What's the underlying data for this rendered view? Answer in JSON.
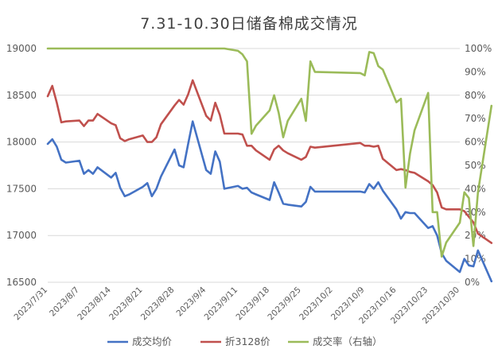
{
  "chart_data": {
    "type": "line",
    "title": "7.31-10.30日储备棉成交情况",
    "xlabel": "",
    "ylabel": "",
    "ylim": [
      16500,
      19000
    ],
    "y_ticks": [
      "16500",
      "17000",
      "17500",
      "18000",
      "18500",
      "19000"
    ],
    "y2lim": [
      0,
      1
    ],
    "y2_ticks": [
      "0%",
      "10%",
      "20%",
      "30%",
      "40%",
      "50%",
      "60%",
      "70%",
      "80%",
      "90%",
      "100%"
    ],
    "x_ticks": [
      "2023/7/31",
      "2023/8/7",
      "2023/8/14",
      "2023/8/21",
      "2023/8/28",
      "2023/9/4",
      "2023/9/11",
      "2023/9/18",
      "2023/9/25",
      "2023/10/2",
      "2023/10/9",
      "2023/10/16",
      "2023/10/23",
      "2023/10/30"
    ],
    "grid": true,
    "legend_position": "bottom",
    "series": [
      {
        "name": "成交均价",
        "axis": "left",
        "color": "#4472c4",
        "points": [
          [
            "2023/7/31",
            17980
          ],
          [
            "2023/8/1",
            18030
          ],
          [
            "2023/8/2",
            17950
          ],
          [
            "2023/8/3",
            17810
          ],
          [
            "2023/8/4",
            17780
          ],
          [
            "2023/8/7",
            17800
          ],
          [
            "2023/8/8",
            17660
          ],
          [
            "2023/8/9",
            17700
          ],
          [
            "2023/8/10",
            17660
          ],
          [
            "2023/8/11",
            17730
          ],
          [
            "2023/8/14",
            17620
          ],
          [
            "2023/8/15",
            17670
          ],
          [
            "2023/8/16",
            17510
          ],
          [
            "2023/8/17",
            17420
          ],
          [
            "2023/8/18",
            17440
          ],
          [
            "2023/8/21",
            17520
          ],
          [
            "2023/8/22",
            17560
          ],
          [
            "2023/8/23",
            17420
          ],
          [
            "2023/8/24",
            17500
          ],
          [
            "2023/8/25",
            17630
          ],
          [
            "2023/8/28",
            17920
          ],
          [
            "2023/8/29",
            17750
          ],
          [
            "2023/8/30",
            17730
          ],
          [
            "2023/8/31",
            17980
          ],
          [
            "2023/9/1",
            18220
          ],
          [
            "2023/9/4",
            17700
          ],
          [
            "2023/9/5",
            17660
          ],
          [
            "2023/9/6",
            17900
          ],
          [
            "2023/9/7",
            17790
          ],
          [
            "2023/9/8",
            17500
          ],
          [
            "2023/9/11",
            17530
          ],
          [
            "2023/9/12",
            17500
          ],
          [
            "2023/9/13",
            17510
          ],
          [
            "2023/9/14",
            17460
          ],
          [
            "2023/9/15",
            17440
          ],
          [
            "2023/9/18",
            17380
          ],
          [
            "2023/9/19",
            17570
          ],
          [
            "2023/9/20",
            17460
          ],
          [
            "2023/9/21",
            17340
          ],
          [
            "2023/9/22",
            17330
          ],
          [
            "2023/9/25",
            17310
          ],
          [
            "2023/9/26",
            17360
          ],
          [
            "2023/9/27",
            17520
          ],
          [
            "2023/9/28",
            17470
          ],
          [
            "2023/10/8",
            17470
          ],
          [
            "2023/10/9",
            17460
          ],
          [
            "2023/10/10",
            17550
          ],
          [
            "2023/10/11",
            17500
          ],
          [
            "2023/10/12",
            17570
          ],
          [
            "2023/10/13",
            17480
          ],
          [
            "2023/10/16",
            17280
          ],
          [
            "2023/10/17",
            17180
          ],
          [
            "2023/10/18",
            17250
          ],
          [
            "2023/10/19",
            17240
          ],
          [
            "2023/10/20",
            17240
          ],
          [
            "2023/10/23",
            17080
          ],
          [
            "2023/10/24",
            17100
          ],
          [
            "2023/10/25",
            17000
          ],
          [
            "2023/10/26",
            16810
          ],
          [
            "2023/10/27",
            16730
          ],
          [
            "2023/10/30",
            16610
          ],
          [
            "2023/10/31",
            16750
          ],
          [
            "2023/11/1",
            16680
          ],
          [
            "2023/11/2",
            16670
          ],
          [
            "2023/11/3",
            16840
          ],
          [
            "2023/11/6",
            16510
          ]
        ]
      },
      {
        "name": "折3128价",
        "axis": "left",
        "color": "#c0504d",
        "points": [
          [
            "2023/7/31",
            18490
          ],
          [
            "2023/8/1",
            18600
          ],
          [
            "2023/8/2",
            18420
          ],
          [
            "2023/8/3",
            18210
          ],
          [
            "2023/8/4",
            18220
          ],
          [
            "2023/8/7",
            18230
          ],
          [
            "2023/8/8",
            18170
          ],
          [
            "2023/8/9",
            18230
          ],
          [
            "2023/8/10",
            18230
          ],
          [
            "2023/8/11",
            18300
          ],
          [
            "2023/8/14",
            18200
          ],
          [
            "2023/8/15",
            18180
          ],
          [
            "2023/8/16",
            18040
          ],
          [
            "2023/8/17",
            18010
          ],
          [
            "2023/8/18",
            18030
          ],
          [
            "2023/8/21",
            18070
          ],
          [
            "2023/8/22",
            18000
          ],
          [
            "2023/8/23",
            18000
          ],
          [
            "2023/8/24",
            18050
          ],
          [
            "2023/8/25",
            18190
          ],
          [
            "2023/8/28",
            18390
          ],
          [
            "2023/8/29",
            18450
          ],
          [
            "2023/8/30",
            18400
          ],
          [
            "2023/8/31",
            18510
          ],
          [
            "2023/9/1",
            18660
          ],
          [
            "2023/9/4",
            18280
          ],
          [
            "2023/9/5",
            18230
          ],
          [
            "2023/9/6",
            18420
          ],
          [
            "2023/9/7",
            18290
          ],
          [
            "2023/9/8",
            18090
          ],
          [
            "2023/9/11",
            18090
          ],
          [
            "2023/9/12",
            18080
          ],
          [
            "2023/9/13",
            17960
          ],
          [
            "2023/9/14",
            17960
          ],
          [
            "2023/9/15",
            17910
          ],
          [
            "2023/9/18",
            17810
          ],
          [
            "2023/9/19",
            17920
          ],
          [
            "2023/9/20",
            17960
          ],
          [
            "2023/9/21",
            17910
          ],
          [
            "2023/9/22",
            17880
          ],
          [
            "2023/9/25",
            17810
          ],
          [
            "2023/9/26",
            17840
          ],
          [
            "2023/9/27",
            17950
          ],
          [
            "2023/9/28",
            17940
          ],
          [
            "2023/10/8",
            17990
          ],
          [
            "2023/10/9",
            17960
          ],
          [
            "2023/10/10",
            17960
          ],
          [
            "2023/10/11",
            17950
          ],
          [
            "2023/10/12",
            17960
          ],
          [
            "2023/10/13",
            17820
          ],
          [
            "2023/10/16",
            17700
          ],
          [
            "2023/10/17",
            17710
          ],
          [
            "2023/10/18",
            17700
          ],
          [
            "2023/10/19",
            17680
          ],
          [
            "2023/10/20",
            17670
          ],
          [
            "2023/10/23",
            17580
          ],
          [
            "2023/10/24",
            17540
          ],
          [
            "2023/10/25",
            17460
          ],
          [
            "2023/10/26",
            17300
          ],
          [
            "2023/10/27",
            17280
          ],
          [
            "2023/10/30",
            17280
          ],
          [
            "2023/10/31",
            17260
          ],
          [
            "2023/11/1",
            17200
          ],
          [
            "2023/11/2",
            17140
          ],
          [
            "2023/11/3",
            17020
          ],
          [
            "2023/11/6",
            16920
          ]
        ]
      },
      {
        "name": "成交率（右轴）",
        "axis": "right",
        "color": "#9bbb59",
        "points": [
          [
            "2023/7/31",
            1.0
          ],
          [
            "2023/8/7",
            1.0
          ],
          [
            "2023/8/14",
            1.0
          ],
          [
            "2023/8/21",
            1.0
          ],
          [
            "2023/8/28",
            1.0
          ],
          [
            "2023/9/4",
            1.0
          ],
          [
            "2023/9/8",
            1.0
          ],
          [
            "2023/9/11",
            0.99
          ],
          [
            "2023/9/12",
            0.975
          ],
          [
            "2023/9/13",
            0.945
          ],
          [
            "2023/9/14",
            0.635
          ],
          [
            "2023/9/15",
            0.67
          ],
          [
            "2023/9/18",
            0.735
          ],
          [
            "2023/9/19",
            0.8
          ],
          [
            "2023/9/20",
            0.725
          ],
          [
            "2023/9/21",
            0.62
          ],
          [
            "2023/9/22",
            0.69
          ],
          [
            "2023/9/25",
            0.785
          ],
          [
            "2023/9/26",
            0.69
          ],
          [
            "2023/9/27",
            0.945
          ],
          [
            "2023/9/28",
            0.9
          ],
          [
            "2023/10/8",
            0.895
          ],
          [
            "2023/10/9",
            0.885
          ],
          [
            "2023/10/10",
            0.985
          ],
          [
            "2023/10/11",
            0.98
          ],
          [
            "2023/10/12",
            0.925
          ],
          [
            "2023/10/13",
            0.91
          ],
          [
            "2023/10/16",
            0.77
          ],
          [
            "2023/10/17",
            0.785
          ],
          [
            "2023/10/18",
            0.405
          ],
          [
            "2023/10/19",
            0.55
          ],
          [
            "2023/10/20",
            0.65
          ],
          [
            "2023/10/23",
            0.81
          ],
          [
            "2023/10/24",
            0.3
          ],
          [
            "2023/10/25",
            0.3
          ],
          [
            "2023/10/26",
            0.11
          ],
          [
            "2023/10/27",
            0.17
          ],
          [
            "2023/10/30",
            0.255
          ],
          [
            "2023/10/31",
            0.385
          ],
          [
            "2023/11/1",
            0.36
          ],
          [
            "2023/11/2",
            0.155
          ],
          [
            "2023/11/3",
            0.385
          ],
          [
            "2023/11/6",
            0.755
          ]
        ]
      }
    ]
  }
}
